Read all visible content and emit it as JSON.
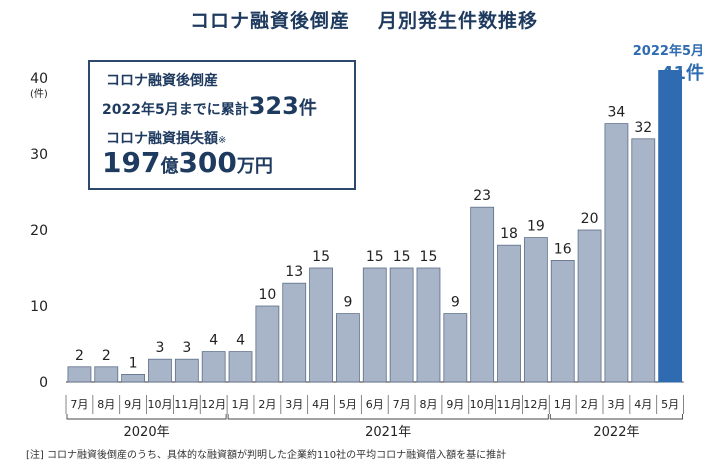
{
  "title": {
    "main": "コロナ融資後倒産",
    "sub": "月別発生件数推移"
  },
  "info_box": {
    "line1": "コロナ融資後倒産",
    "line2_prefix": "2022年5月までに累計",
    "line2_value": "323",
    "line2_unit": "件",
    "line3": "コロナ融資損失額",
    "line3_mark": "※",
    "line4_value1": "197",
    "line4_unit1": "億",
    "line4_value2": "300",
    "line4_unit2": "万円"
  },
  "callout": {
    "label": "2022年5月",
    "value": "41件"
  },
  "footnote": "[注] コロナ融資後倒産のうち、具体的な融資額が判明した企業約110社の平均コロナ融資借入額を基に推計",
  "colors": {
    "bar": "#a8b4c8",
    "bar_stroke": "#5d6f88",
    "highlight": "#2e6bb0",
    "axis": "#333333"
  },
  "chart_data": {
    "type": "bar",
    "title": "コロナ融資後倒産　月別発生件数推移",
    "ylabel": "(件)",
    "ylim": [
      0,
      40
    ],
    "yticks": [
      0,
      10,
      20,
      30,
      40
    ],
    "grid": false,
    "categories": [
      "7月",
      "8月",
      "9月",
      "10月",
      "11月",
      "12月",
      "1月",
      "2月",
      "3月",
      "4月",
      "5月",
      "6月",
      "7月",
      "8月",
      "9月",
      "10月",
      "11月",
      "12月",
      "1月",
      "2月",
      "3月",
      "4月",
      "5月"
    ],
    "values": [
      2,
      2,
      1,
      3,
      3,
      4,
      4,
      10,
      13,
      15,
      9,
      15,
      15,
      15,
      9,
      23,
      18,
      19,
      16,
      20,
      34,
      32,
      41
    ],
    "data_labels": [
      "2",
      "2",
      "1",
      "3",
      "3",
      "4",
      "4",
      "10",
      "13",
      "15",
      "9",
      "15",
      "15",
      "15",
      "9",
      "23",
      "18",
      "19",
      "16",
      "20",
      "34",
      "32",
      ""
    ],
    "highlight_index": 22,
    "year_groups": [
      {
        "label": "2020年",
        "start": 0,
        "end": 5
      },
      {
        "label": "2021年",
        "start": 6,
        "end": 17
      },
      {
        "label": "2022年",
        "start": 18,
        "end": 22
      }
    ]
  }
}
